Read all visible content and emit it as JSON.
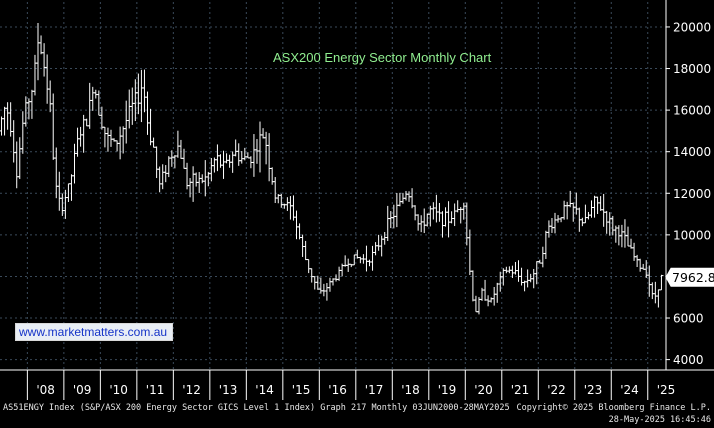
{
  "colors": {
    "background": "#000000",
    "grid": "#3a4a5a",
    "bars": "#ffffff",
    "title": "#90ee90",
    "watermark_text": "#1533c8"
  },
  "chart_data": {
    "type": "ohlc",
    "title": "ASX200 Energy Sector Monthly Chart",
    "watermark": "www.marketmatters.com.au",
    "last_value_label": "7962.8",
    "last_value": 7962.8,
    "ylim": [
      3500,
      21200
    ],
    "y_ticks": [
      4000,
      6000,
      8000,
      10000,
      12000,
      14000,
      16000,
      18000,
      20000
    ],
    "y_tick_labels": [
      "4000",
      "6000",
      "8000",
      "10000",
      "12000",
      "14000",
      "16000",
      "18000",
      "20000"
    ],
    "x_tick_labels": [
      "'08",
      "'09",
      "'10",
      "'11",
      "'12",
      "'13",
      "'14",
      "'15",
      "'16",
      "'17",
      "'18",
      "'19",
      "'20",
      "'21",
      "'22",
      "'23",
      "'24",
      "'25"
    ],
    "x_start_year": 2007.25,
    "x_end_year": 2025.5,
    "grid": true,
    "y_axis_position": "right",
    "anchor_points": [
      [
        2007.25,
        15000
      ],
      [
        2007.45,
        16300
      ],
      [
        2007.6,
        15200
      ],
      [
        2007.75,
        13000
      ],
      [
        2007.95,
        15800
      ],
      [
        2008.2,
        17200
      ],
      [
        2008.35,
        19600
      ],
      [
        2008.5,
        18100
      ],
      [
        2008.65,
        16500
      ],
      [
        2008.8,
        12500
      ],
      [
        2008.95,
        11200
      ],
      [
        2009.2,
        12400
      ],
      [
        2009.45,
        14800
      ],
      [
        2009.7,
        15600
      ],
      [
        2009.85,
        17400
      ],
      [
        2010.0,
        16100
      ],
      [
        2010.2,
        14700
      ],
      [
        2010.45,
        14300
      ],
      [
        2010.7,
        15300
      ],
      [
        2010.95,
        16300
      ],
      [
        2011.1,
        16700
      ],
      [
        2011.2,
        17400
      ],
      [
        2011.35,
        15200
      ],
      [
        2011.5,
        14200
      ],
      [
        2011.65,
        12300
      ],
      [
        2011.95,
        13800
      ],
      [
        2012.2,
        14300
      ],
      [
        2012.4,
        12500
      ],
      [
        2012.7,
        12600
      ],
      [
        2012.95,
        12700
      ],
      [
        2013.2,
        13700
      ],
      [
        2013.45,
        13200
      ],
      [
        2013.7,
        14000
      ],
      [
        2013.95,
        13600
      ],
      [
        2014.2,
        13800
      ],
      [
        2014.45,
        14700
      ],
      [
        2014.55,
        14800
      ],
      [
        2014.65,
        13600
      ],
      [
        2014.85,
        11700
      ],
      [
        2015.1,
        11500
      ],
      [
        2015.3,
        11200
      ],
      [
        2015.45,
        10200
      ],
      [
        2015.65,
        8900
      ],
      [
        2015.85,
        8000
      ],
      [
        2016.05,
        7100
      ],
      [
        2016.3,
        7600
      ],
      [
        2016.55,
        8100
      ],
      [
        2016.8,
        8700
      ],
      [
        2017.05,
        8900
      ],
      [
        2017.3,
        8800
      ],
      [
        2017.55,
        9100
      ],
      [
        2017.8,
        10100
      ],
      [
        2018.05,
        10900
      ],
      [
        2018.25,
        11500
      ],
      [
        2018.45,
        12200
      ],
      [
        2018.6,
        11500
      ],
      [
        2018.8,
        10200
      ],
      [
        2019.05,
        11200
      ],
      [
        2019.3,
        10900
      ],
      [
        2019.55,
        10700
      ],
      [
        2019.8,
        11100
      ],
      [
        2020.0,
        11700
      ],
      [
        2020.15,
        8500
      ],
      [
        2020.3,
        6200
      ],
      [
        2020.5,
        7200
      ],
      [
        2020.75,
        6800
      ],
      [
        2020.95,
        7700
      ],
      [
        2021.15,
        8300
      ],
      [
        2021.4,
        8200
      ],
      [
        2021.65,
        7700
      ],
      [
        2021.9,
        8100
      ],
      [
        2022.1,
        8900
      ],
      [
        2022.3,
        10300
      ],
      [
        2022.55,
        10800
      ],
      [
        2022.8,
        11300
      ],
      [
        2023.05,
        11200
      ],
      [
        2023.3,
        10500
      ],
      [
        2023.6,
        11600
      ],
      [
        2023.8,
        11200
      ],
      [
        2024.05,
        10400
      ],
      [
        2024.3,
        10100
      ],
      [
        2024.55,
        9300
      ],
      [
        2024.8,
        8500
      ],
      [
        2025.0,
        8300
      ],
      [
        2025.2,
        6800
      ],
      [
        2025.4,
        7963
      ]
    ]
  },
  "footer": {
    "left": "AS51ENGY Index (S&P/ASX 200 Energy Sector GICS Level 1 Index) Graph 217  Monthly 03JUN2000-28MAY2025",
    "right_line1": "Copyright© 2025 Bloomberg Finance L.P.",
    "right_line2": "28-May-2025 16:45:46"
  }
}
